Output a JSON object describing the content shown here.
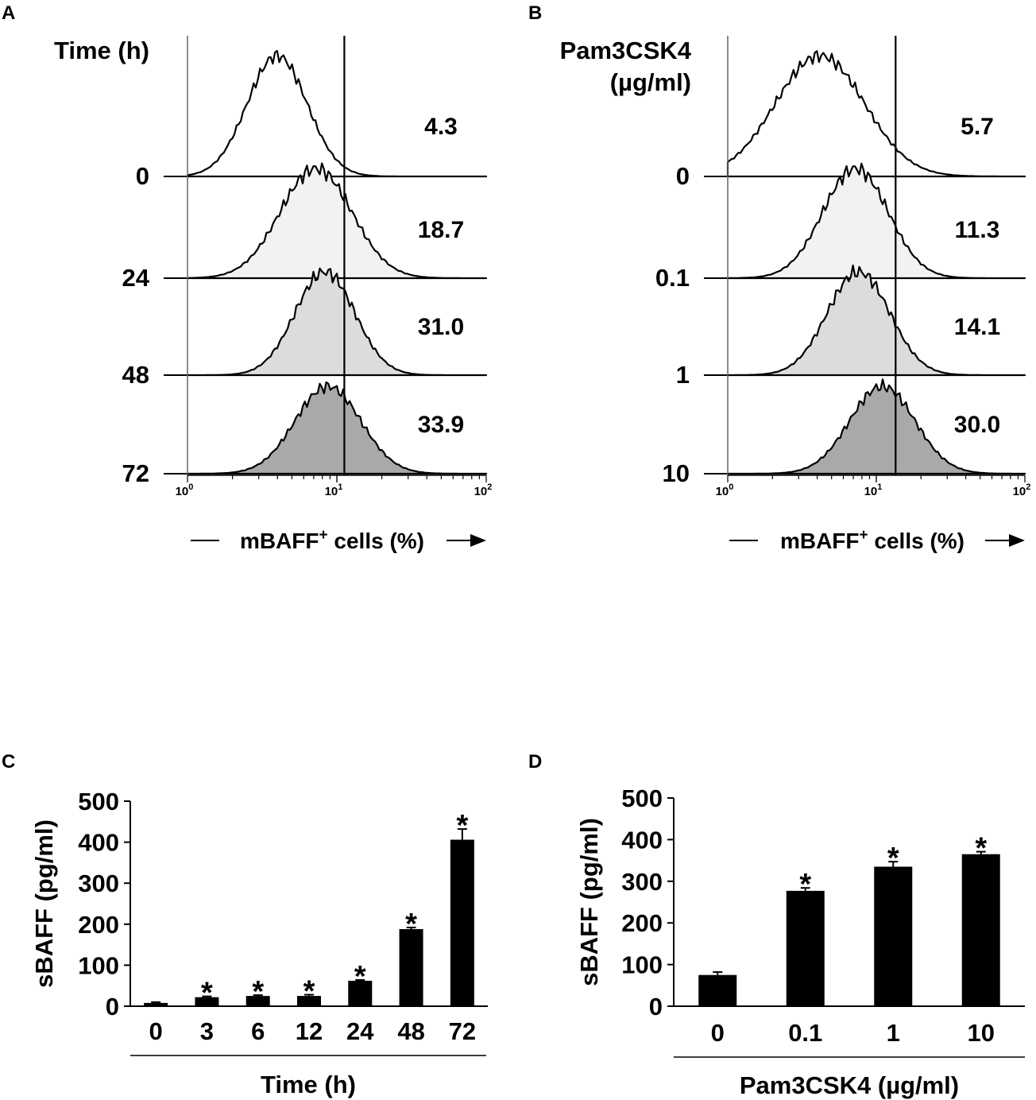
{
  "panels": {
    "A": {
      "letter": "A",
      "type": "histogram-overlay",
      "row_title": "Time (h)",
      "row_title_lines": [
        "Time (h)"
      ],
      "row_labels": [
        "0",
        "24",
        "48",
        "72"
      ],
      "percentages": [
        "4.3",
        "18.7",
        "31.0",
        "33.9"
      ],
      "fills": [
        "#ffffff",
        "#f2f2f2",
        "#dcdcdc",
        "#a9a9a9"
      ],
      "gate_log10": 1.05,
      "shapes": [
        {
          "mu": 0.6,
          "sigma": 0.2,
          "jitter": 0.04
        },
        {
          "mu": 0.86,
          "sigma": 0.24,
          "jitter": 0.05
        },
        {
          "mu": 0.92,
          "sigma": 0.2,
          "jitter": 0.05
        },
        {
          "mu": 0.94,
          "sigma": 0.22,
          "jitter": 0.05
        }
      ],
      "x_ticks": [
        {
          "base": "10",
          "exp": "0"
        },
        {
          "base": "10",
          "exp": "1"
        },
        {
          "base": "10",
          "exp": "2"
        }
      ],
      "xlabel": "mBAFF",
      "xlabel_sup": "+",
      "xlabel_suffix": "cells (%)"
    },
    "B": {
      "letter": "B",
      "type": "histogram-overlay",
      "row_title": "Pam3CSK4 (µg/ml)",
      "row_title_lines": [
        "Pam3CSK4",
        "(µg/ml)"
      ],
      "row_labels": [
        "0",
        "0.1",
        "1",
        "10"
      ],
      "percentages": [
        "5.7",
        "11.3",
        "14.1",
        "30.0"
      ],
      "fills": [
        "#ffffff",
        "#f2f2f2",
        "#dcdcdc",
        "#a9a9a9"
      ],
      "gate_log10": 1.13,
      "shapes": [
        {
          "mu": 0.62,
          "sigma": 0.3,
          "jitter": 0.04
        },
        {
          "mu": 0.86,
          "sigma": 0.22,
          "jitter": 0.05
        },
        {
          "mu": 0.88,
          "sigma": 0.21,
          "jitter": 0.05
        },
        {
          "mu": 1.04,
          "sigma": 0.22,
          "jitter": 0.05
        }
      ],
      "x_ticks": [
        {
          "base": "10",
          "exp": "0"
        },
        {
          "base": "10",
          "exp": "1"
        },
        {
          "base": "10",
          "exp": "2"
        }
      ],
      "xlabel": "mBAFF",
      "xlabel_sup": "+",
      "xlabel_suffix": "cells (%)"
    }
  },
  "chart_data": [
    {
      "panel": "C",
      "type": "bar",
      "categories": [
        "0",
        "3",
        "6",
        "12",
        "24",
        "48",
        "72"
      ],
      "values": [
        8,
        22,
        25,
        25,
        62,
        188,
        406
      ],
      "errors": [
        2,
        2,
        2,
        3,
        2,
        4,
        26
      ],
      "significant": [
        false,
        true,
        true,
        true,
        true,
        true,
        true
      ],
      "significance_marker": "*",
      "ylabel": "sBAFF (pg/ml)",
      "xlabel": "Time (h)",
      "ylim": [
        0,
        500
      ],
      "yticks": [
        0,
        100,
        200,
        300,
        400,
        500
      ],
      "bar_color": "#000000"
    },
    {
      "panel": "D",
      "type": "bar",
      "categories": [
        "0",
        "0.1",
        "1",
        "10"
      ],
      "values": [
        75,
        277,
        335,
        365
      ],
      "errors": [
        7,
        7,
        12,
        6
      ],
      "significant": [
        false,
        true,
        true,
        true
      ],
      "significance_marker": "*",
      "ylabel": "sBAFF (pg/ml)",
      "xlabel": "Pam3CSK4 (µg/ml)",
      "ylim": [
        0,
        500
      ],
      "yticks": [
        0,
        100,
        200,
        300,
        400,
        500
      ],
      "bar_color": "#000000"
    }
  ],
  "panel_letters": {
    "C": "C",
    "D": "D"
  }
}
